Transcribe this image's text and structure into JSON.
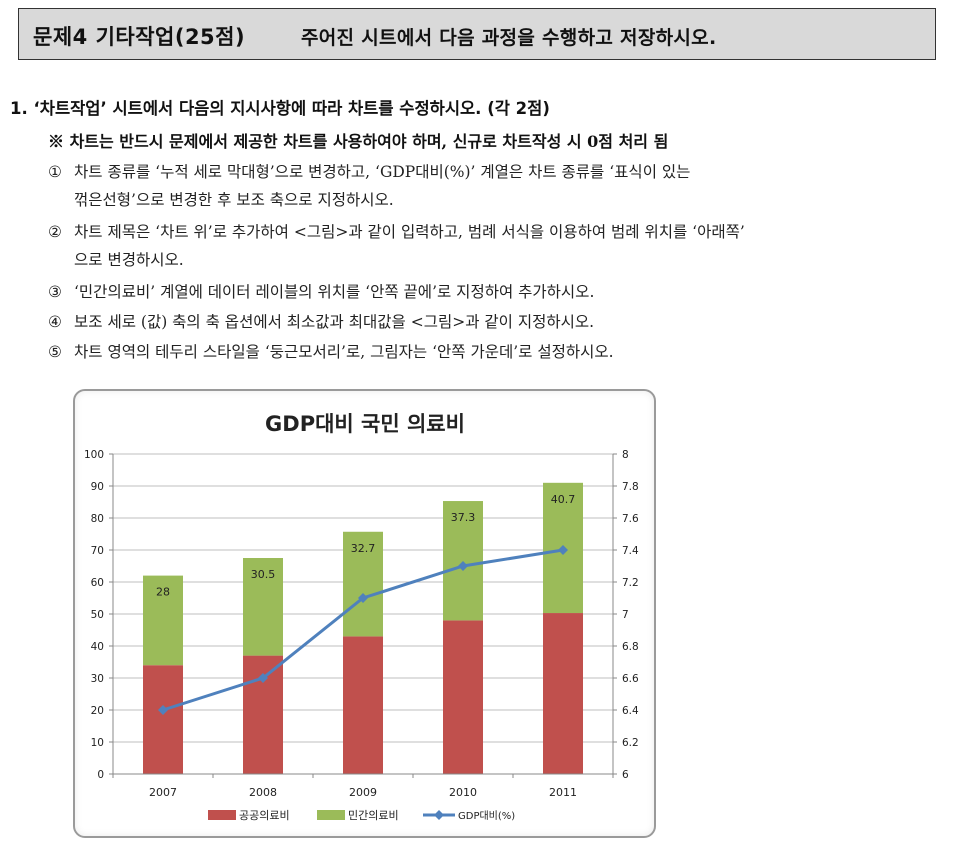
{
  "header": {
    "title": "문제4 기타작업(25점)",
    "description": "주어진 시트에서 다음 과정을 수행하고 저장하시오."
  },
  "question": {
    "title": "1. ‘차트작업’ 시트에서 다음의 지시사항에 따라 차트를 수정하시오. (각 2점)",
    "note": "※ 차트는 반드시 문제에서 제공한 차트를 사용하여야 하며, 신규로 차트작성 시 0점 처리 됨",
    "items": [
      {
        "mark": "①",
        "line1": "차트 종류를 ‘누적 세로 막대형’으로 변경하고, ‘GDP대비(%)’ 계열은 차트 종류를 ‘표식이 있는",
        "line2": "꺾은선형’으로 변경한 후 보조 축으로 지정하시오."
      },
      {
        "mark": "②",
        "line1": "차트 제목은 ‘차트 위’로 추가하여 <그림>과 같이 입력하고, 범례 서식을 이용하여 범례 위치를 ‘아래쪽’",
        "line2": "으로 변경하시오."
      },
      {
        "mark": "③",
        "line1": "‘민간의료비’ 계열에 데이터 레이블의 위치를 ‘안쪽 끝에’로 지정하여 추가하시오."
      },
      {
        "mark": "④",
        "line1": "보조 세로 (값) 축의 축 옵션에서 최소값과 최대값을 <그림>과 같이 지정하시오."
      },
      {
        "mark": "⑤",
        "line1": "차트 영역의 테두리 스타일을 ‘둥근모서리’로, 그림자는 ‘안쪽 가운데’로 설정하시오."
      }
    ]
  },
  "chart_data": {
    "type": "bar",
    "stacked": true,
    "title": "GDP대비 국민 의료비",
    "categories": [
      "2007",
      "2008",
      "2009",
      "2010",
      "2011"
    ],
    "series": [
      {
        "name": "공공의료비",
        "type": "bar",
        "axis": "primary",
        "color": "#c0504d",
        "values": [
          34,
          37,
          43,
          48,
          50.3
        ]
      },
      {
        "name": "민간의료비",
        "type": "bar",
        "axis": "primary",
        "color": "#9bbb59",
        "values": [
          28,
          30.5,
          32.7,
          37.3,
          40.7
        ],
        "data_labels": [
          "28",
          "30.5",
          "32.7",
          "37.3",
          "40.7"
        ]
      },
      {
        "name": "GDP대비(%)",
        "type": "line",
        "axis": "secondary",
        "color": "#4f81bd",
        "values": [
          6.4,
          6.6,
          7.1,
          7.3,
          7.4
        ]
      }
    ],
    "ylim": [
      0,
      100
    ],
    "yticks": [
      "0",
      "10",
      "20",
      "30",
      "40",
      "50",
      "60",
      "70",
      "80",
      "90",
      "100"
    ],
    "y2lim": [
      6,
      8
    ],
    "y2ticks": [
      "6",
      "6.2",
      "6.4",
      "6.6",
      "6.8",
      "7",
      "7.2",
      "7.4",
      "7.6",
      "7.8",
      "8"
    ],
    "grid": true,
    "legend": "bottom"
  }
}
